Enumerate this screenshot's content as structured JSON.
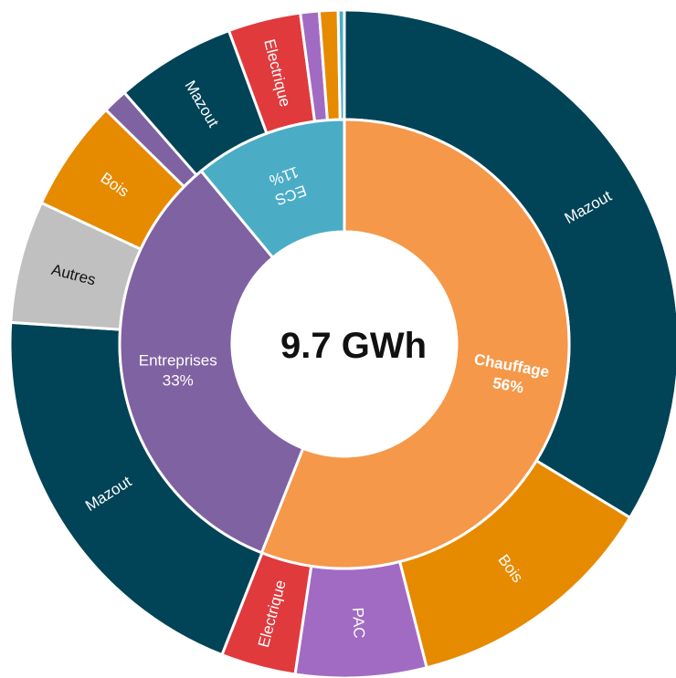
{
  "chart_data": {
    "type": "sunburst",
    "center_label": "9.7 GWh",
    "inner_ring": [
      {
        "name": "Chauffage",
        "value_label": "56%",
        "value": 56,
        "color": "#F5984A"
      },
      {
        "name": "Entreprises",
        "value_label": "33%",
        "value": 33,
        "color": "#7F62A2"
      },
      {
        "name": "ECS",
        "value_label": "11%",
        "value": 11,
        "color": "#4BACC6"
      }
    ],
    "outer_ring": [
      {
        "parent": "Chauffage",
        "label": "Mazout",
        "value": 33.6,
        "color": "#014357"
      },
      {
        "parent": "Chauffage",
        "label": "Bois",
        "value": 12.3,
        "color": "#E68A00"
      },
      {
        "parent": "Chauffage",
        "label": "PAC",
        "value": 6.3,
        "color": "#A26BC3"
      },
      {
        "parent": "Chauffage",
        "label": "Electrique",
        "value": 3.6,
        "color": "#E03A3C"
      },
      {
        "parent": "Entreprises",
        "label": "Mazout",
        "value": 20.0,
        "color": "#014357"
      },
      {
        "parent": "Entreprises",
        "label": "Autres",
        "value": 5.9,
        "color": "#C0C0C0"
      },
      {
        "parent": "Entreprises",
        "label": "Bois",
        "value": 5.4,
        "color": "#E68A00"
      },
      {
        "parent": "Entreprises",
        "label": "",
        "value": 1.2,
        "color": "#7F62A2"
      },
      {
        "parent": "ECS",
        "label": "Mazout",
        "value": 5.8,
        "color": "#014357"
      },
      {
        "parent": "ECS",
        "label": "Electrique",
        "value": 3.5,
        "color": "#E03A3C"
      },
      {
        "parent": "ECS",
        "label": "",
        "value": 0.9,
        "color": "#A26BC3"
      },
      {
        "parent": "ECS",
        "label": "",
        "value": 0.9,
        "color": "#E68A00"
      },
      {
        "parent": "ECS",
        "label": "",
        "value": 0.3,
        "color": "#4BACC6"
      }
    ]
  }
}
